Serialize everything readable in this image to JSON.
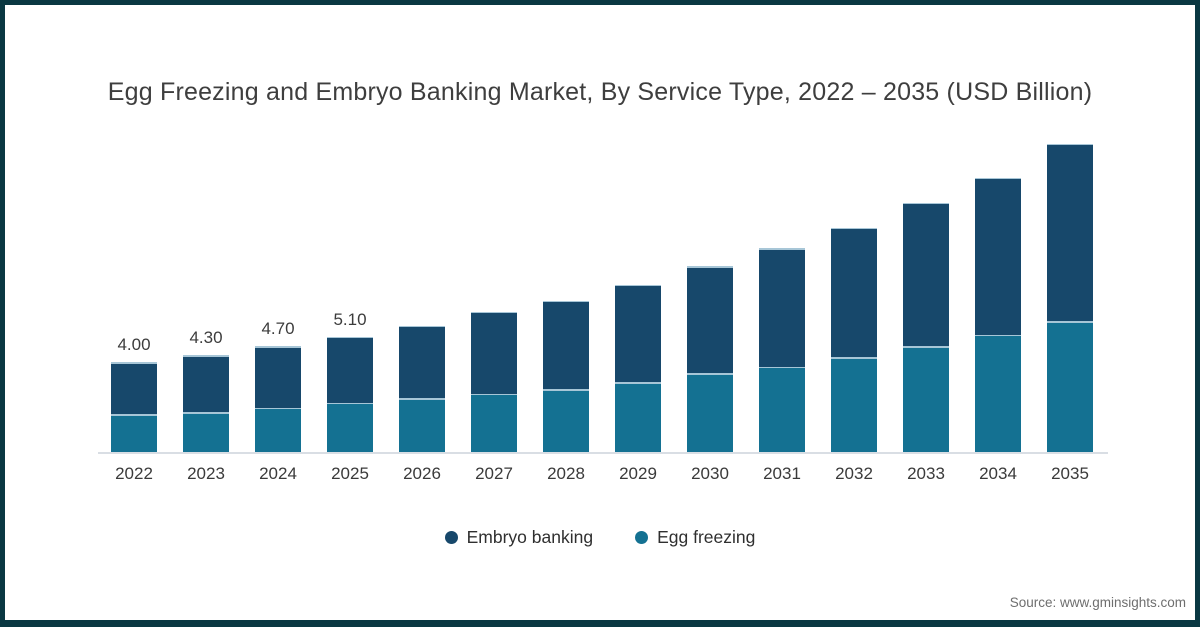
{
  "title": "Egg Freezing and Embryo Banking Market, By Service Type, 2022 – 2035 (USD Billion)",
  "source": "Source: www.gminsights.com",
  "frame_color": "#0a3842",
  "legend": {
    "items": [
      {
        "label": "Embryo banking",
        "color": "#17486b"
      },
      {
        "label": "Egg freezing",
        "color": "#147192"
      }
    ]
  },
  "chart_data": {
    "type": "bar",
    "stacked": true,
    "title": "Egg Freezing and Embryo Banking Market, By Service Type, 2022 – 2035 (USD Billion)",
    "xlabel": "",
    "ylabel": "USD Billion",
    "ylim": [
      0,
      14
    ],
    "grid": false,
    "legend_position": "bottom",
    "categories": [
      "2022",
      "2023",
      "2024",
      "2025",
      "2026",
      "2027",
      "2028",
      "2029",
      "2030",
      "2031",
      "2032",
      "2033",
      "2034",
      "2035"
    ],
    "series": [
      {
        "name": "Embryo banking",
        "color": "#17486b",
        "values": [
          2.3,
          2.5,
          2.7,
          2.9,
          3.2,
          3.6,
          3.9,
          4.3,
          4.7,
          5.2,
          5.7,
          6.3,
          6.9,
          7.8
        ]
      },
      {
        "name": "Egg freezing",
        "color": "#147192",
        "values": [
          1.7,
          1.8,
          2.0,
          2.2,
          2.4,
          2.6,
          2.8,
          3.1,
          3.5,
          3.8,
          4.2,
          4.7,
          5.2,
          5.8
        ]
      }
    ],
    "totals": [
      4.0,
      4.3,
      4.7,
      5.1,
      5.6,
      6.2,
      6.7,
      7.4,
      8.2,
      9.0,
      9.9,
      11.0,
      12.1,
      13.6
    ],
    "total_labels": [
      "4.00",
      "4.30",
      "4.70",
      "5.10",
      "",
      "",
      "",
      "",
      "",
      "",
      "",
      "",
      "",
      ""
    ]
  }
}
